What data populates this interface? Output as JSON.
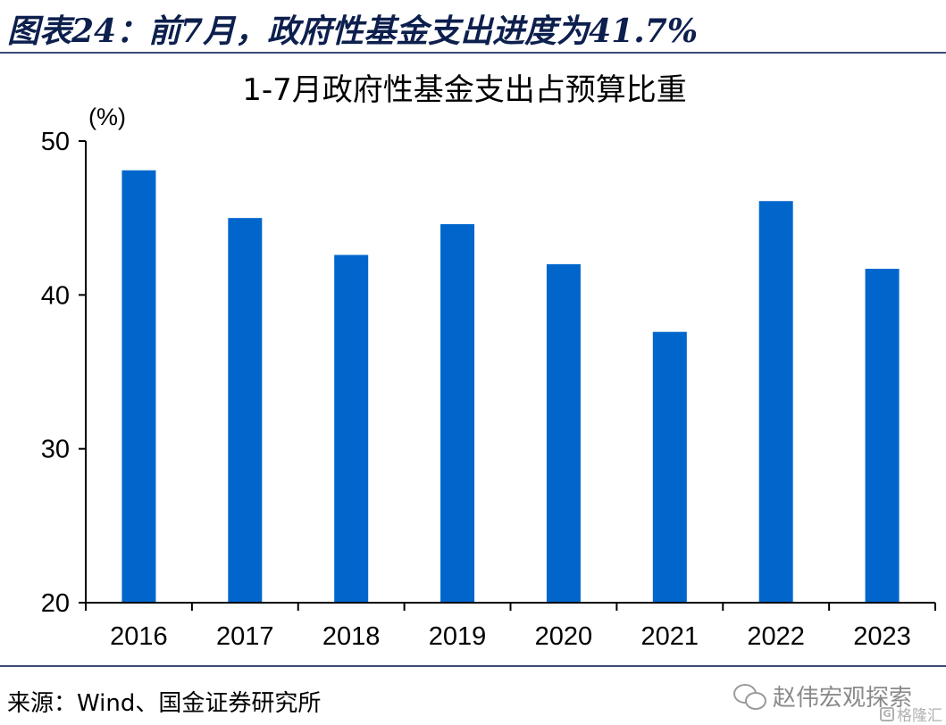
{
  "figure": {
    "title": "图表24：前7月，政府性基金支出进度为41.7%"
  },
  "chart_data": {
    "type": "bar",
    "title": "1-7月政府性基金支出占预算比重",
    "ylabel": "(%)",
    "xlabel": "",
    "categories": [
      "2016",
      "2017",
      "2018",
      "2019",
      "2020",
      "2021",
      "2022",
      "2023"
    ],
    "values": [
      48.1,
      45.0,
      42.6,
      44.6,
      42.0,
      37.6,
      46.1,
      41.7
    ],
    "ylim": [
      20,
      50
    ],
    "yticks": [
      "50",
      "40",
      "30",
      "20"
    ],
    "bar_color": "#0066cc",
    "grid": false,
    "legend": "none"
  },
  "footer": {
    "source": "来源：Wind、国金证券研究所",
    "watermark": "赵伟宏观探索",
    "watermark_icon": "wechat-icon",
    "site_mark": "格隆汇",
    "site_icon": "g-icon",
    "site_icon_letter": "G"
  }
}
